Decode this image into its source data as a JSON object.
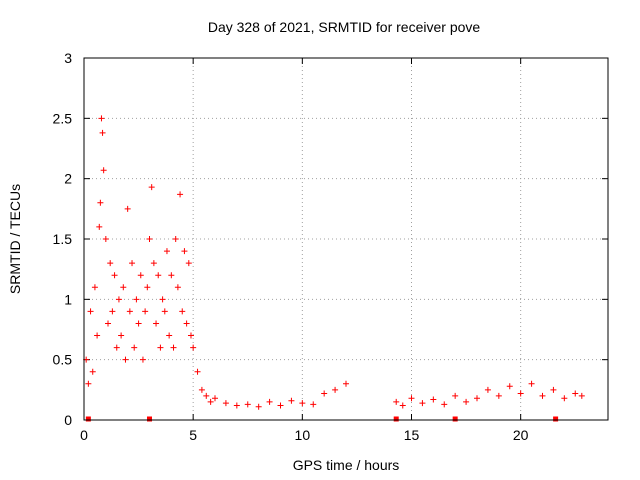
{
  "chart_data": {
    "type": "scatter",
    "title": "Day 328 of 2021, SRMTID for receiver pove",
    "xlabel": "GPS time / hours",
    "ylabel": "SRMTID / TECUs",
    "xlim": [
      0,
      24
    ],
    "ylim": [
      0,
      3
    ],
    "xticks": [
      0,
      5,
      10,
      15,
      20
    ],
    "yticks": [
      0,
      0.5,
      1,
      1.5,
      2,
      2.5,
      3
    ],
    "ytick_labels": [
      "0",
      "0.5",
      "1",
      "1.5",
      "2",
      "2.5",
      "3"
    ],
    "grid": true,
    "marker": "plus",
    "color": "#ff0000",
    "series": [
      {
        "x": [
          0.1,
          0.2,
          0.3,
          0.4,
          0.5,
          0.6,
          0.7,
          0.75,
          0.8,
          0.85,
          0.9,
          1.0,
          1.1,
          1.2,
          1.3,
          1.4,
          1.5,
          1.6,
          1.7,
          1.8,
          1.9,
          2.0,
          2.1,
          2.2,
          2.3,
          2.4,
          2.5,
          2.6,
          2.7,
          2.8,
          2.9,
          3.0,
          3.1,
          3.2,
          3.3,
          3.4,
          3.5,
          3.6,
          3.7,
          3.8,
          3.9,
          4.0,
          4.1,
          4.2,
          4.3,
          4.4,
          4.5,
          4.6,
          4.7,
          4.8,
          4.9,
          5.0,
          5.2,
          5.4,
          5.6,
          5.8,
          6.0,
          6.5,
          7.0,
          7.5,
          8.0,
          8.5,
          9.0,
          9.5,
          10.0,
          10.5,
          11.0,
          11.5,
          12.0,
          14.3,
          14.6,
          15.0,
          15.5,
          16.0,
          16.5,
          17.0,
          17.5,
          18.0,
          18.5,
          19.0,
          19.5,
          20.0,
          20.5,
          21.0,
          21.5,
          22.0,
          22.5,
          22.8
        ],
        "y": [
          0.5,
          0.3,
          0.9,
          0.4,
          1.1,
          0.7,
          1.6,
          1.8,
          2.5,
          2.38,
          2.07,
          1.5,
          0.8,
          1.3,
          0.9,
          1.2,
          0.6,
          1.0,
          0.7,
          1.1,
          0.5,
          1.75,
          0.9,
          1.3,
          0.6,
          1.0,
          0.8,
          1.2,
          0.5,
          0.9,
          1.1,
          1.5,
          1.93,
          1.3,
          0.8,
          1.2,
          0.6,
          1.0,
          0.9,
          1.4,
          0.7,
          1.2,
          0.6,
          1.5,
          1.1,
          1.87,
          0.9,
          1.4,
          0.8,
          1.3,
          0.7,
          0.6,
          0.4,
          0.25,
          0.2,
          0.15,
          0.18,
          0.14,
          0.12,
          0.13,
          0.11,
          0.15,
          0.12,
          0.16,
          0.14,
          0.13,
          0.22,
          0.25,
          0.3,
          0.15,
          0.12,
          0.18,
          0.14,
          0.17,
          0.13,
          0.2,
          0.15,
          0.18,
          0.25,
          0.2,
          0.28,
          0.22,
          0.3,
          0.2,
          0.25,
          0.18,
          0.22,
          0.2
        ]
      }
    ],
    "zero_markers_x": [
      0.2,
      3.0,
      14.3,
      17.0,
      21.6
    ]
  }
}
